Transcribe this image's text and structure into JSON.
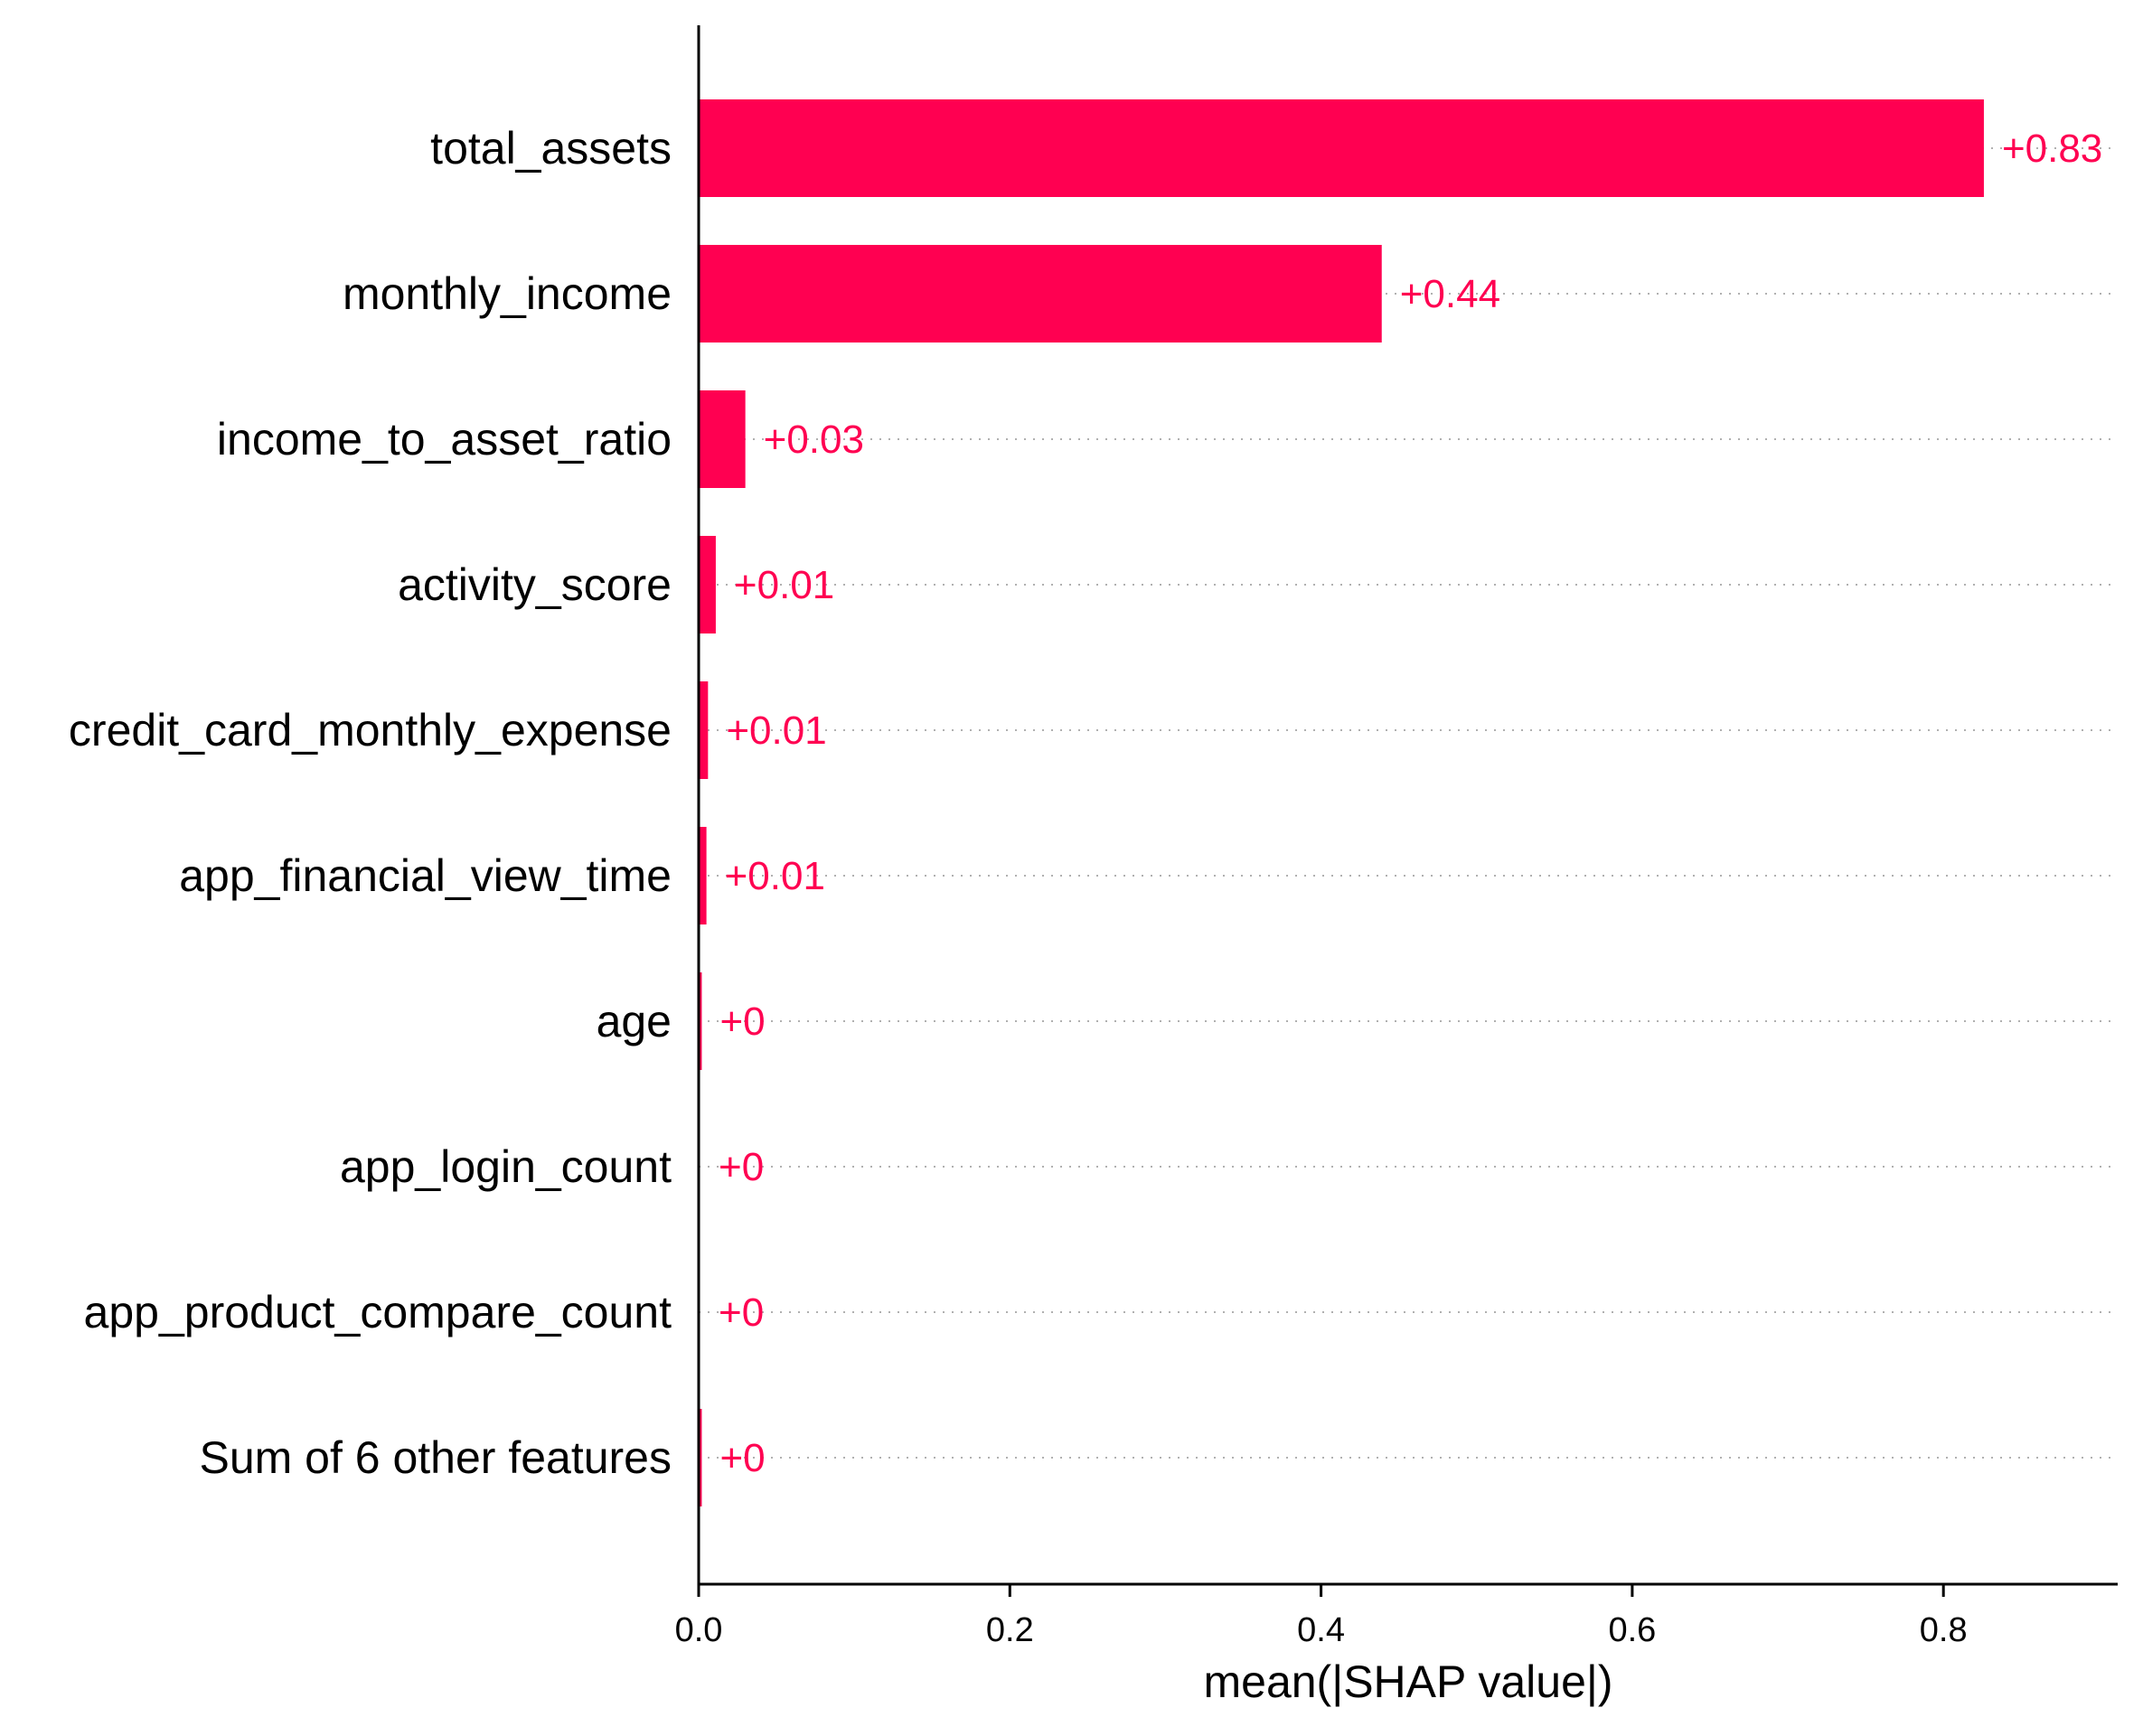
{
  "chart_data": {
    "type": "bar",
    "orientation": "horizontal",
    "categories": [
      "total_assets",
      "monthly_income",
      "income_to_asset_ratio",
      "activity_score",
      "credit_card_monthly_expense",
      "app_financial_view_time",
      "age",
      "app_login_count",
      "app_product_compare_count",
      "Sum of 6 other features"
    ],
    "values": [
      0.826,
      0.439,
      0.03,
      0.011,
      0.006,
      0.005,
      0.002,
      0.0005,
      0.0005,
      0.002
    ],
    "value_labels": [
      "+0.83",
      "+0.44",
      "+0.03",
      "+0.01",
      "+0.01",
      "+0.01",
      "+0",
      "+0",
      "+0",
      "+0"
    ],
    "xlabel": "mean(|SHAP value|)",
    "xlim": [
      0,
      0.912
    ],
    "xticks": [
      0.0,
      0.2,
      0.4,
      0.6,
      0.8
    ],
    "xtick_labels": [
      "0.0",
      "0.2",
      "0.4",
      "0.6",
      "0.8"
    ],
    "grid": "dotted row guide lines",
    "colors": {
      "bar": "#ff0051",
      "label": "#ff0051",
      "axis": "#000000",
      "guide": "#b0b0b0"
    }
  }
}
